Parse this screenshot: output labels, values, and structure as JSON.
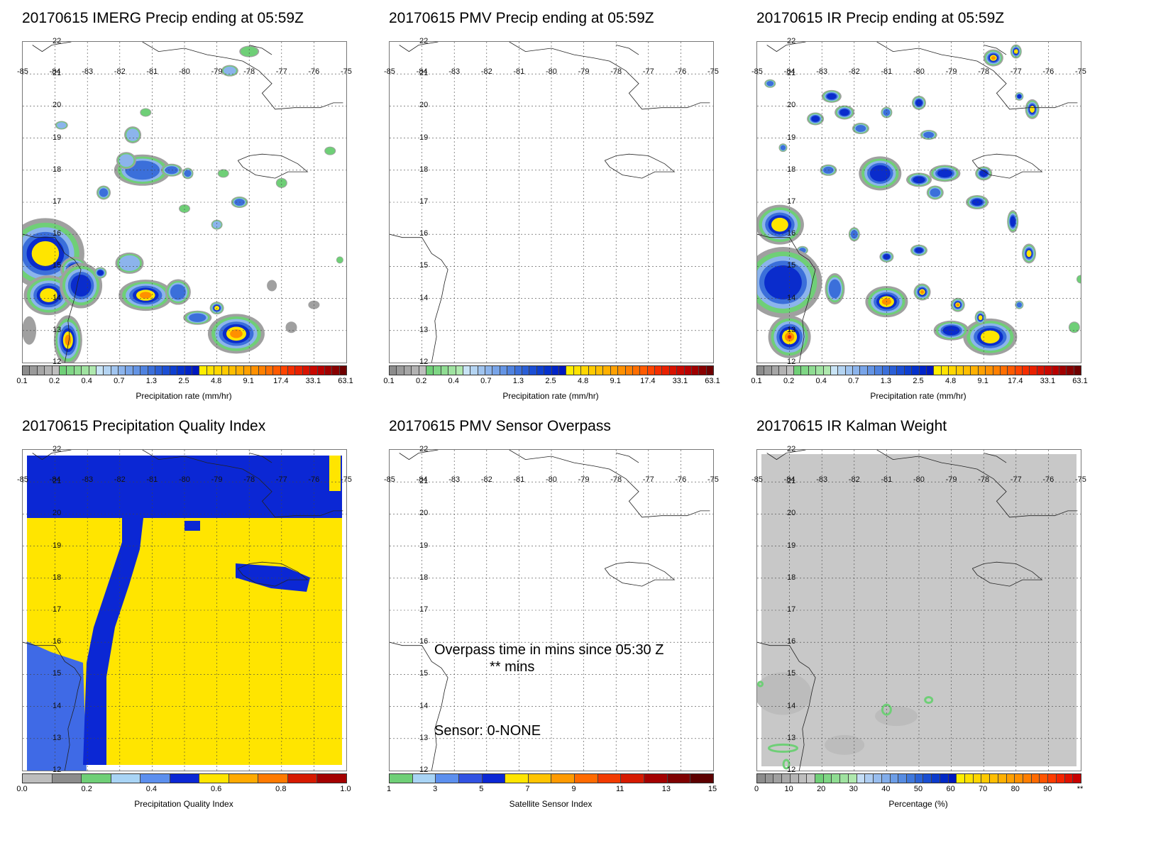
{
  "panels": [
    {
      "title": "20170615 IMERG Precip ending at 05:59Z",
      "kind": "precip",
      "scale": "precip",
      "blobs": "imerg"
    },
    {
      "title": "20170615 PMV Precip ending at 05:59Z",
      "kind": "empty",
      "scale": "precip",
      "blobs": "none"
    },
    {
      "title": "20170615 IR Precip ending at 05:59Z",
      "kind": "precip",
      "scale": "precip",
      "blobs": "ir"
    },
    {
      "title": "20170615 Precipitation Quality Index",
      "kind": "quality",
      "scale": "quality",
      "blobs": "none"
    },
    {
      "title": "20170615 PMV Sensor Overpass",
      "kind": "overpass",
      "scale": "sensor",
      "blobs": "none"
    },
    {
      "title": "20170615 IR Kalman Weight",
      "kind": "kalman",
      "scale": "kalman",
      "blobs": "none"
    }
  ],
  "axes": {
    "lon_labels": [
      "-85",
      "-84",
      "-83",
      "-82",
      "-81",
      "-80",
      "-79",
      "-78",
      "-77",
      "-76",
      "-75"
    ],
    "lon_labels_quality": [
      "-85",
      "-84",
      "-83",
      "-82",
      "-81",
      "-80",
      "-79",
      "-78",
      "-77",
      "-76",
      "-75"
    ],
    "lat_labels": [
      "22",
      "21",
      "20",
      "19",
      "18",
      "17",
      "16",
      "15",
      "14",
      "13",
      "12"
    ]
  },
  "overpass_text": {
    "line1": "Overpass time in mins since 05:30 Z",
    "line2": "** mins",
    "sensor": "Sensor:   0-NONE"
  },
  "scales": {
    "precip": {
      "title": "Precipitation rate (mm/hr)",
      "colors": [
        "#8c8c8c",
        "#9a9a9a",
        "#a6a6a6",
        "#b2b2b2",
        "#bebebe",
        "#6fcf77",
        "#7fd685",
        "#8fdc92",
        "#9fe2a0",
        "#afe8ae",
        "#c8e3f5",
        "#b4d4f2",
        "#a0c4ef",
        "#8cb4ec",
        "#78a4e8",
        "#6494e4",
        "#4f82df",
        "#3b6fda",
        "#2a5ed6",
        "#1b4ed4",
        "#0e3fd0",
        "#0531cc",
        "#0024c8",
        "#0018c0",
        "#ffee00",
        "#ffe200",
        "#ffd600",
        "#ffca00",
        "#ffbe00",
        "#ffb000",
        "#ffa000",
        "#ff9000",
        "#ff8000",
        "#ff6e00",
        "#ff5a00",
        "#ff4400",
        "#f52e00",
        "#e82000",
        "#d81200",
        "#c80800",
        "#b80000",
        "#a00000",
        "#880000",
        "#6e0000"
      ],
      "ticks": [
        "0.1",
        "0.2",
        "0.4",
        "0.7",
        "1.3",
        "2.5",
        "4.8",
        "9.1",
        "17.4",
        "33.1",
        "63.1"
      ]
    },
    "quality": {
      "title": "Precipitation Quality Index",
      "colors": [
        "#bdbdbd",
        "#8c8c8c",
        "#6fcf77",
        "#a9d4f5",
        "#5c8fee",
        "#0b27d4",
        "#ffe500",
        "#ffaa00",
        "#ff7a00",
        "#d61a00",
        "#a30000"
      ],
      "ticks": [
        "0.0",
        "0.2",
        "0.4",
        "0.6",
        "0.8",
        "1.0"
      ]
    },
    "sensor": {
      "title": "Satellite Sensor Index",
      "colors": [
        "#6fcf77",
        "#a9d4f5",
        "#5c8fee",
        "#3152e2",
        "#0b27d4",
        "#ffe500",
        "#ffc400",
        "#ff9a00",
        "#ff6a00",
        "#f23a00",
        "#d61a00",
        "#a30000",
        "#7e0000",
        "#5c0000"
      ],
      "ticks": [
        "1",
        "3",
        "5",
        "7",
        "9",
        "11",
        "13",
        "15"
      ]
    },
    "kalman": {
      "title": "Percentage (%)",
      "colors": [
        "#8c8c8c",
        "#969696",
        "#a0a0a0",
        "#aaaaaa",
        "#b4b4b4",
        "#bebebe",
        "#c8c8c8",
        "#6fcf77",
        "#7fd685",
        "#8fdc92",
        "#9fe2a0",
        "#afe8ae",
        "#c4ddf5",
        "#aecdf2",
        "#98bdee",
        "#82adea",
        "#6c9de6",
        "#568ce2",
        "#3f78dc",
        "#2a62d6",
        "#1a4ed2",
        "#0c3bcc",
        "#0128c6",
        "#0018bd",
        "#ffee00",
        "#ffe200",
        "#ffd600",
        "#ffca00",
        "#ffbe00",
        "#ffb000",
        "#ffa000",
        "#ff9000",
        "#ff7e00",
        "#ff6a00",
        "#ff5400",
        "#ff3c00",
        "#f42400",
        "#e01000",
        "#c80000"
      ],
      "ticks": [
        "0",
        "10",
        "20",
        "30",
        "40",
        "50",
        "60",
        "70",
        "80",
        "90",
        "**"
      ]
    }
  }
}
